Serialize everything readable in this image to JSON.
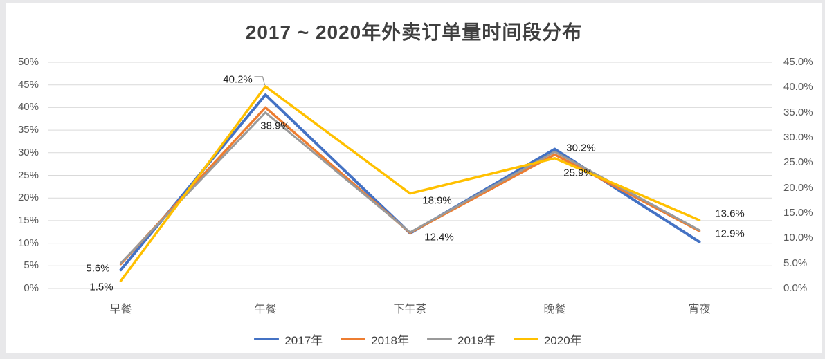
{
  "title": "2017 ~ 2020年外卖订单量时间段分布",
  "colors": {
    "series_2017": "#4472C4",
    "series_2018": "#ED7D31",
    "series_2019": "#9A9A9A",
    "series_2020": "#FFC000",
    "gridline": "#D9D9D9",
    "axis_text": "#595959",
    "label_text": "#1F1F1F",
    "title_text": "#3F3F3F",
    "leader_line": "#808080"
  },
  "chart_data": {
    "type": "line",
    "title": "2017 ~ 2020年外卖订单量时间段分布",
    "categories": [
      "早餐",
      "午餐",
      "下午茶",
      "晚餐",
      "宵夜"
    ],
    "series": [
      {
        "name": "2017年",
        "color": "#4472C4",
        "axis": "left",
        "values": [
          4.1,
          42.8,
          12.2,
          30.8,
          10.3
        ],
        "labels": null
      },
      {
        "name": "2018年",
        "color": "#ED7D31",
        "axis": "left",
        "values": [
          5.4,
          40.0,
          12.3,
          29.6,
          12.7
        ],
        "labels": null
      },
      {
        "name": "2019年",
        "color": "#9A9A9A",
        "axis": "left",
        "values": [
          5.6,
          38.9,
          12.4,
          30.2,
          12.9
        ],
        "labels": [
          "5.6%",
          "38.9%",
          "12.4%",
          "30.2%",
          "12.9%"
        ]
      },
      {
        "name": "2020年",
        "color": "#FFC000",
        "axis": "right",
        "values": [
          1.5,
          40.2,
          18.9,
          25.9,
          13.6
        ],
        "labels": [
          "1.5%",
          "40.2%",
          "18.9%",
          "25.9%",
          "13.6%"
        ]
      }
    ],
    "left_axis": {
      "min": 0,
      "max": 50,
      "step": 5,
      "labels": [
        "50%",
        "45%",
        "40%",
        "35%",
        "30%",
        "25%",
        "20%",
        "15%",
        "10%",
        "5%",
        "0%"
      ]
    },
    "right_axis": {
      "min": 0,
      "max": 45,
      "step": 5,
      "labels": [
        "45.0%",
        "40.0%",
        "35.0%",
        "30.0%",
        "25.0%",
        "20.0%",
        "15.0%",
        "10.0%",
        "5.0%",
        "0.0%"
      ]
    },
    "legend": [
      "2017年",
      "2018年",
      "2019年",
      "2020年"
    ],
    "legend_position": "bottom",
    "grid": true
  }
}
